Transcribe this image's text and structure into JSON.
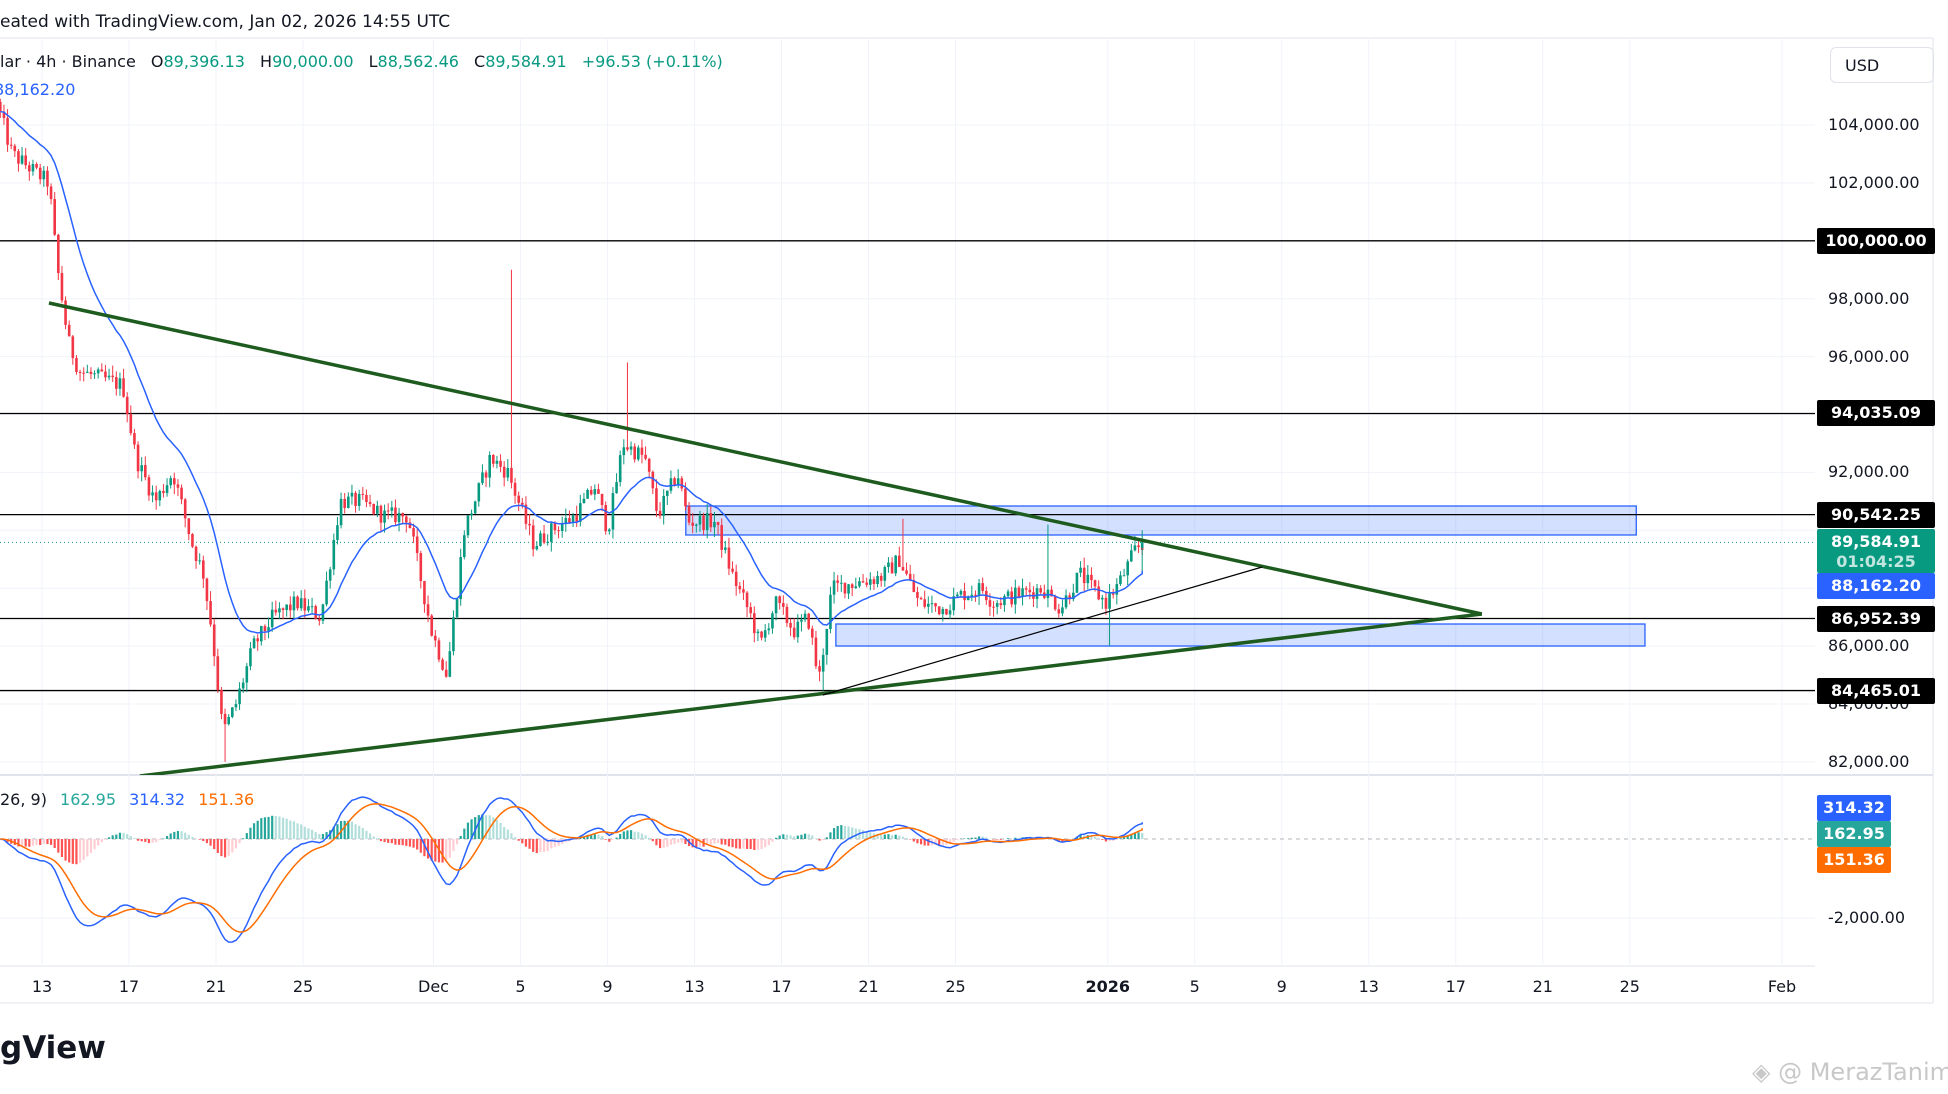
{
  "header": {
    "created_text": "eated with TradingView.com, Jan 02, 2026 14:55 UTC"
  },
  "legend": {
    "symbol": "lar · 4h · Binance",
    "open_label": "O",
    "open": "89,396.13",
    "high_label": "H",
    "high": "90,000.00",
    "low_label": "L",
    "low": "88,562.46",
    "close_label": "C",
    "close": "89,584.91",
    "change": "+96.53 (+0.11%)",
    "ma_value": "88,162.20"
  },
  "macd_legend": {
    "params": "26, 9)",
    "histogram": "162.95",
    "macd": "314.32",
    "signal": "151.36"
  },
  "price_axis": {
    "currency": "USD",
    "ticks": [
      "104,000.00",
      "102,000.00",
      "98,000.00",
      "96,000.00",
      "92,000.00",
      "86,000.00",
      "84,000.00",
      "82,000.00"
    ],
    "tick_values": [
      104000,
      102000,
      98000,
      96000,
      92000,
      86000,
      84000,
      82000
    ],
    "level_tags": [
      {
        "text": "100,000.00",
        "value": 100000
      },
      {
        "text": "94,035.09",
        "value": 94035.09
      },
      {
        "text": "90,542.25",
        "value": 90542.25
      },
      {
        "text": "86,952.39",
        "value": 86952.39
      },
      {
        "text": "84,465.01",
        "value": 84465.01
      }
    ],
    "current_price": "89,584.91",
    "countdown": "01:04:25",
    "ma_tag": "88,162.20",
    "macd_tick": "-2,000.00",
    "macd_tags": {
      "macd": "314.32",
      "histogram": "162.95",
      "signal": "151.36"
    }
  },
  "time_axis": {
    "labels": [
      {
        "text": "13",
        "day": 0
      },
      {
        "text": "17",
        "day": 4
      },
      {
        "text": "21",
        "day": 8
      },
      {
        "text": "25",
        "day": 12
      },
      {
        "text": "Dec",
        "day": 18
      },
      {
        "text": "5",
        "day": 22
      },
      {
        "text": "9",
        "day": 26
      },
      {
        "text": "13",
        "day": 30
      },
      {
        "text": "17",
        "day": 34
      },
      {
        "text": "21",
        "day": 38
      },
      {
        "text": "25",
        "day": 42
      },
      {
        "text": "2026",
        "day": 49
      },
      {
        "text": "5",
        "day": 53
      },
      {
        "text": "9",
        "day": 57
      },
      {
        "text": "13",
        "day": 61
      },
      {
        "text": "17",
        "day": 65
      },
      {
        "text": "21",
        "day": 69
      },
      {
        "text": "25",
        "day": 73
      },
      {
        "text": "Feb",
        "day": 80
      }
    ]
  },
  "colors": {
    "up": "#089981",
    "down": "#f23645",
    "ma": "#2962ff",
    "signal": "#ff6d00",
    "trend": "#1e5b1e",
    "box": "#2962ff"
  },
  "chart_data": {
    "type": "candlestick",
    "interval": "4h",
    "x_unit": "days since Nov 13",
    "close_path": [
      [
        -2,
        104800
      ],
      [
        -1.3,
        103000
      ],
      [
        0.4,
        102000
      ],
      [
        0.8,
        99000
      ],
      [
        1.3,
        96500
      ],
      [
        1.8,
        95500
      ],
      [
        3.8,
        95000
      ],
      [
        4.4,
        92500
      ],
      [
        5.3,
        91000
      ],
      [
        6.1,
        92000
      ],
      [
        7,
        89500
      ],
      [
        7.5,
        88500
      ],
      [
        7.9,
        86500
      ],
      [
        8.4,
        83000
      ],
      [
        9,
        84000
      ],
      [
        9.8,
        86000
      ],
      [
        10.7,
        87000
      ],
      [
        11.8,
        87500
      ],
      [
        12.9,
        87000
      ],
      [
        13.8,
        91000
      ],
      [
        14.7,
        91000
      ],
      [
        15.8,
        90500
      ],
      [
        16.9,
        90500
      ],
      [
        18,
        86500
      ],
      [
        18.7,
        85000
      ],
      [
        19.5,
        90000
      ],
      [
        20.7,
        92500
      ],
      [
        21.5,
        92000
      ],
      [
        22.7,
        89500
      ],
      [
        23.5,
        90000
      ],
      [
        24.6,
        90500
      ],
      [
        25.5,
        91500
      ],
      [
        26.1,
        90000
      ],
      [
        26.8,
        93000
      ],
      [
        27.8,
        92500
      ],
      [
        28.4,
        90500
      ],
      [
        29.3,
        92000
      ],
      [
        29.8,
        90300
      ],
      [
        31,
        90300
      ],
      [
        31.8,
        88500
      ],
      [
        32.7,
        87000
      ],
      [
        33.1,
        86000
      ],
      [
        33.8,
        87500
      ],
      [
        34.7,
        86500
      ],
      [
        35.3,
        87000
      ],
      [
        35.8,
        84800
      ],
      [
        36.4,
        88000
      ],
      [
        37.5,
        88200
      ],
      [
        38.7,
        88400
      ],
      [
        39.5,
        89000
      ],
      [
        40.4,
        87500
      ],
      [
        41.5,
        87300
      ],
      [
        42.4,
        87800
      ],
      [
        43.3,
        88000
      ],
      [
        43.8,
        87500
      ],
      [
        45,
        87800
      ],
      [
        46.1,
        88000
      ],
      [
        46.9,
        87300
      ],
      [
        47.8,
        88500
      ],
      [
        48.6,
        87800
      ],
      [
        49,
        87500
      ],
      [
        49.7,
        88300
      ],
      [
        50.4,
        89396
      ]
    ],
    "wick_extremes": [
      {
        "day": 21.5,
        "high": 99000
      },
      {
        "day": 26.8,
        "high": 95800
      },
      {
        "day": 39.5,
        "high": 90400
      },
      {
        "day": 46.1,
        "high": 90200
      },
      {
        "day": 35.8,
        "low": 84465
      },
      {
        "day": 8.4,
        "low": 82000
      },
      {
        "day": 49,
        "low": 86000
      }
    ],
    "last_candle": {
      "open": 89396.13,
      "high": 90000,
      "low": 88562.46,
      "close": 89584.91
    },
    "horizontal_levels": [
      100000,
      94035.09,
      90542.25,
      86952.39,
      84465.01
    ],
    "current_price": 89584.91,
    "boxes": [
      {
        "from_day": 29.6,
        "to_day": 73.3,
        "top": 90839,
        "bottom": 89838
      },
      {
        "from_day": 36.5,
        "to_day": 73.7,
        "top": 86763,
        "bottom": 86003
      }
    ],
    "trendlines": [
      {
        "from": [
          0.32,
          97851
        ],
        "to": [
          66.2,
          87109
        ],
        "style": "thick"
      },
      {
        "from": [
          4.5,
          81513
        ],
        "to": [
          66.2,
          87109
        ],
        "style": "thick"
      },
      {
        "from": [
          35.9,
          84311
        ],
        "to": [
          56.1,
          88732
        ],
        "style": "thin"
      }
    ],
    "ylim": [
      81500,
      105500
    ],
    "macd": {
      "fast": 12,
      "slow": 26,
      "signal": 9,
      "ylim": [
        -2600,
        1000
      ]
    }
  }
}
